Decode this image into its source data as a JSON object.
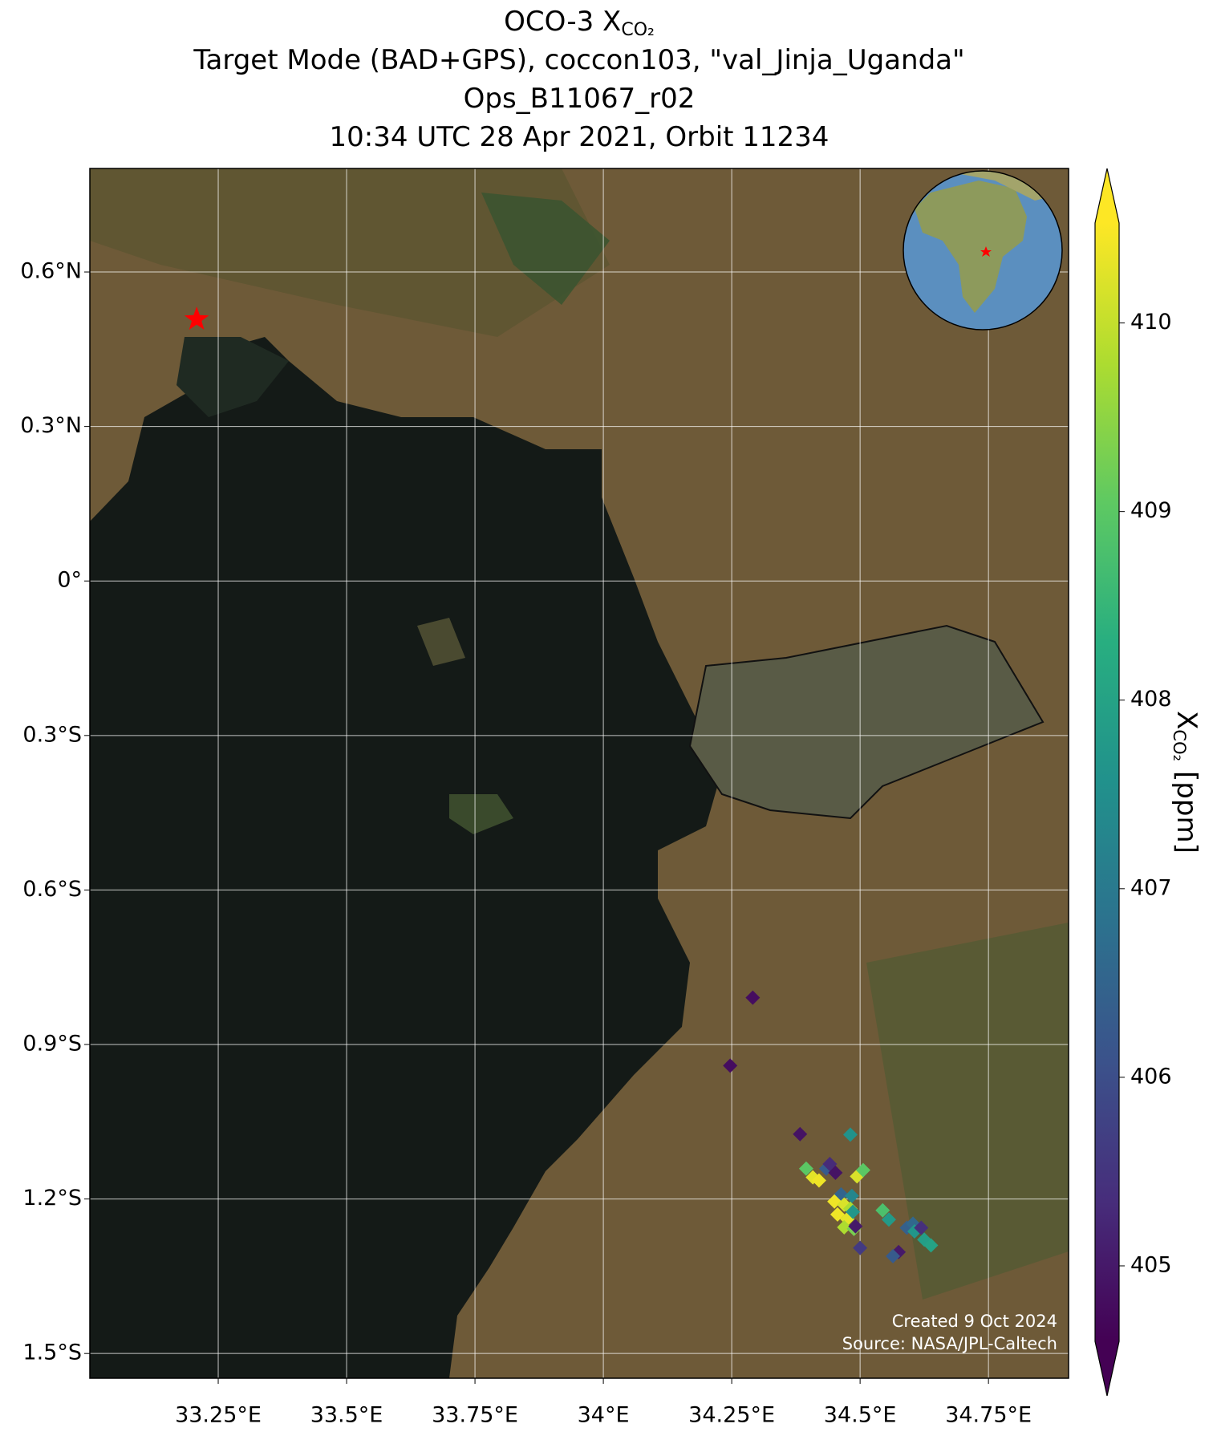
{
  "chart_data": {
    "type": "scatter",
    "title_lines": [
      "OCO-3 X",
      "Target Mode (BAD+GPS), coccon103, \"val_Jinja_Uganda\"",
      "Ops_B11067_r02",
      "10:34 UTC 28 Apr 2021, Orbit 11234"
    ],
    "title_subscript": "CO₂",
    "xlim": [
      33.0,
      34.906
    ],
    "ylim": [
      -1.548,
      0.801
    ],
    "xticks": [
      {
        "value": 33.25,
        "label": "33.25°E"
      },
      {
        "value": 33.5,
        "label": "33.5°E"
      },
      {
        "value": 33.75,
        "label": "33.75°E"
      },
      {
        "value": 34,
        "label": "34°E"
      },
      {
        "value": 34.25,
        "label": "34.25°E"
      },
      {
        "value": 34.5,
        "label": "34.5°E"
      },
      {
        "value": 34.75,
        "label": "34.75°E"
      }
    ],
    "yticks": [
      {
        "value": 0.6,
        "label": "0.6°N"
      },
      {
        "value": 0.3,
        "label": "0.3°N"
      },
      {
        "value": 0,
        "label": "0°"
      },
      {
        "value": -0.3,
        "label": "0.3°S"
      },
      {
        "value": -0.6,
        "label": "0.6°S"
      },
      {
        "value": -0.9,
        "label": "0.9°S"
      },
      {
        "value": -1.2,
        "label": "1.2°S"
      },
      {
        "value": -1.5,
        "label": "1.5°S"
      }
    ],
    "grid": true,
    "colormap": "viridis",
    "clim": [
      404.6,
      410.53
    ],
    "cticks": [
      405,
      406,
      407,
      408,
      409,
      410
    ],
    "colorbar_label": {
      "main": "X",
      "sub": "CO₂",
      "unit": "[ppm]"
    },
    "site_marker": {
      "lon": 33.208,
      "lat": 0.508,
      "color": "#ff0000"
    },
    "credits": [
      "Created 9 Oct 2024",
      "Source: NASA/JPL-Caltech"
    ],
    "x": [
      34.291,
      34.247,
      34.383,
      34.481,
      34.395,
      34.408,
      34.42,
      34.434,
      34.441,
      34.452,
      34.494,
      34.506,
      34.463,
      34.484,
      34.45,
      34.469,
      34.481,
      34.456,
      34.475,
      34.486,
      34.469,
      34.488,
      34.491,
      34.5,
      34.544,
      34.556,
      34.591,
      34.603,
      34.606,
      34.619,
      34.625,
      34.638,
      34.575,
      34.564
    ],
    "y": [
      -0.809,
      -0.941,
      -1.074,
      -1.075,
      -1.141,
      -1.158,
      -1.164,
      -1.141,
      -1.132,
      -1.149,
      -1.156,
      -1.144,
      -1.191,
      -1.194,
      -1.205,
      -1.211,
      -1.219,
      -1.23,
      -1.239,
      -1.225,
      -1.255,
      -1.258,
      -1.253,
      -1.295,
      -1.222,
      -1.24,
      -1.256,
      -1.248,
      -1.263,
      -1.256,
      -1.279,
      -1.29,
      -1.303,
      -1.311
    ],
    "values": [
      404.8,
      404.8,
      404.9,
      407.6,
      409.0,
      410.3,
      410.4,
      406.3,
      405.3,
      404.9,
      410.2,
      409.0,
      406.5,
      407.3,
      410.4,
      410.2,
      409.8,
      410.4,
      410.3,
      407.7,
      409.8,
      409.3,
      405.0,
      405.6,
      408.8,
      407.8,
      406.4,
      406.6,
      407.7,
      405.4,
      407.9,
      408.0,
      405.0,
      406.3
    ]
  }
}
